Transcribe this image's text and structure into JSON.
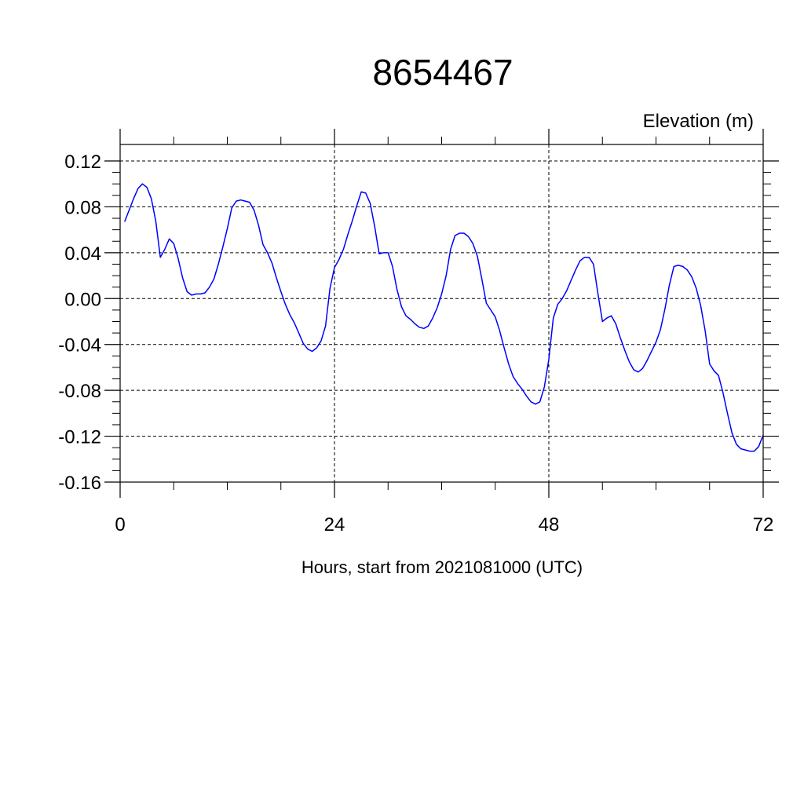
{
  "chart_data": {
    "type": "line",
    "title": "8654467",
    "ylabel": "Elevation (m)",
    "xlabel": "Hours, start from 2021081000 (UTC)",
    "xlim": [
      0,
      72
    ],
    "ylim": [
      -0.16,
      0.12
    ],
    "xticks": [
      0,
      24,
      48,
      72
    ],
    "xtick_labels": [
      "0",
      "24",
      "48",
      "72"
    ],
    "yticks": [
      -0.16,
      -0.12,
      -0.08,
      -0.04,
      0.0,
      0.04,
      0.08,
      0.12
    ],
    "ytick_labels": [
      "-0.16",
      "-0.12",
      "-0.08",
      "-0.04",
      "0.00",
      "0.04",
      "0.08",
      "0.12"
    ],
    "grid": true,
    "line_color": "#0000ff",
    "series": [
      {
        "values": [
          [
            0.5,
            0.067
          ],
          [
            1.5,
            0.087
          ],
          [
            2.0,
            0.096
          ],
          [
            2.5,
            0.1
          ],
          [
            3.0,
            0.097
          ],
          [
            3.5,
            0.087
          ],
          [
            4.0,
            0.067
          ],
          [
            4.5,
            0.036
          ],
          [
            5.0,
            0.043
          ],
          [
            5.5,
            0.052
          ],
          [
            6.0,
            0.048
          ],
          [
            6.5,
            0.035
          ],
          [
            7.0,
            0.018
          ],
          [
            7.5,
            0.006
          ],
          [
            8.0,
            0.003
          ],
          [
            8.5,
            0.004
          ],
          [
            9.0,
            0.004
          ],
          [
            9.5,
            0.005
          ],
          [
            10.0,
            0.01
          ],
          [
            10.5,
            0.017
          ],
          [
            11.0,
            0.03
          ],
          [
            11.5,
            0.045
          ],
          [
            12.0,
            0.061
          ],
          [
            12.5,
            0.079
          ],
          [
            13.0,
            0.085
          ],
          [
            13.5,
            0.086
          ],
          [
            14.0,
            0.085
          ],
          [
            14.5,
            0.084
          ],
          [
            15.0,
            0.077
          ],
          [
            15.5,
            0.064
          ],
          [
            16.0,
            0.047
          ],
          [
            16.5,
            0.04
          ],
          [
            17.0,
            0.031
          ],
          [
            17.5,
            0.018
          ],
          [
            18.0,
            0.006
          ],
          [
            18.5,
            -0.005
          ],
          [
            19.0,
            -0.014
          ],
          [
            19.5,
            -0.021
          ],
          [
            20.0,
            -0.03
          ],
          [
            20.5,
            -0.039
          ],
          [
            21.0,
            -0.044
          ],
          [
            21.5,
            -0.046
          ],
          [
            22.0,
            -0.043
          ],
          [
            22.5,
            -0.037
          ],
          [
            23.0,
            -0.024
          ],
          [
            23.5,
            0.009
          ],
          [
            24.0,
            0.027
          ],
          [
            24.5,
            0.034
          ],
          [
            25.0,
            0.043
          ],
          [
            25.5,
            0.056
          ],
          [
            26.0,
            0.068
          ],
          [
            26.5,
            0.081
          ],
          [
            27.0,
            0.093
          ],
          [
            27.5,
            0.092
          ],
          [
            28.0,
            0.083
          ],
          [
            28.5,
            0.063
          ],
          [
            29.0,
            0.039
          ],
          [
            29.5,
            0.04
          ],
          [
            30.0,
            0.04
          ],
          [
            30.5,
            0.028
          ],
          [
            31.0,
            0.008
          ],
          [
            31.5,
            -0.007
          ],
          [
            32.0,
            -0.015
          ],
          [
            32.5,
            -0.018
          ],
          [
            33.0,
            -0.022
          ],
          [
            33.5,
            -0.025
          ],
          [
            34.0,
            -0.026
          ],
          [
            34.5,
            -0.024
          ],
          [
            35.0,
            -0.017
          ],
          [
            35.5,
            -0.008
          ],
          [
            36.0,
            0.004
          ],
          [
            36.5,
            0.02
          ],
          [
            37.0,
            0.043
          ],
          [
            37.5,
            0.055
          ],
          [
            38.0,
            0.057
          ],
          [
            38.5,
            0.057
          ],
          [
            39.0,
            0.054
          ],
          [
            39.5,
            0.048
          ],
          [
            40.0,
            0.037
          ],
          [
            40.5,
            0.017
          ],
          [
            41.0,
            -0.004
          ],
          [
            41.5,
            -0.01
          ],
          [
            42.0,
            -0.016
          ],
          [
            42.5,
            -0.028
          ],
          [
            43.0,
            -0.043
          ],
          [
            43.5,
            -0.057
          ],
          [
            44.0,
            -0.068
          ],
          [
            44.5,
            -0.074
          ],
          [
            45.0,
            -0.079
          ],
          [
            45.5,
            -0.085
          ],
          [
            46.0,
            -0.09
          ],
          [
            46.5,
            -0.092
          ],
          [
            47.0,
            -0.09
          ],
          [
            47.5,
            -0.077
          ],
          [
            48.0,
            -0.053
          ],
          [
            48.5,
            -0.017
          ],
          [
            49.0,
            -0.005
          ],
          [
            49.5,
            0.0
          ],
          [
            50.0,
            0.007
          ],
          [
            50.5,
            0.016
          ],
          [
            51.0,
            0.025
          ],
          [
            51.5,
            0.033
          ],
          [
            52.0,
            0.036
          ],
          [
            52.5,
            0.036
          ],
          [
            53.0,
            0.03
          ],
          [
            53.5,
            0.004
          ],
          [
            54.0,
            -0.02
          ],
          [
            54.5,
            -0.017
          ],
          [
            55.0,
            -0.015
          ],
          [
            55.5,
            -0.022
          ],
          [
            56.0,
            -0.034
          ],
          [
            56.5,
            -0.045
          ],
          [
            57.0,
            -0.055
          ],
          [
            57.5,
            -0.062
          ],
          [
            58.0,
            -0.064
          ],
          [
            58.5,
            -0.061
          ],
          [
            59.0,
            -0.054
          ],
          [
            59.5,
            -0.046
          ],
          [
            60.0,
            -0.038
          ],
          [
            60.5,
            -0.027
          ],
          [
            61.0,
            -0.009
          ],
          [
            61.5,
            0.012
          ],
          [
            62.0,
            0.028
          ],
          [
            62.5,
            0.029
          ],
          [
            63.0,
            0.028
          ],
          [
            63.5,
            0.025
          ],
          [
            64.0,
            0.019
          ],
          [
            64.5,
            0.009
          ],
          [
            65.0,
            -0.006
          ],
          [
            65.5,
            -0.028
          ],
          [
            66.0,
            -0.057
          ],
          [
            66.5,
            -0.063
          ],
          [
            67.0,
            -0.067
          ],
          [
            67.5,
            -0.082
          ],
          [
            68.0,
            -0.1
          ],
          [
            68.5,
            -0.117
          ],
          [
            69.0,
            -0.127
          ],
          [
            69.5,
            -0.131
          ],
          [
            70.0,
            -0.132
          ],
          [
            70.5,
            -0.133
          ],
          [
            71.0,
            -0.133
          ],
          [
            71.5,
            -0.129
          ],
          [
            72.0,
            -0.119
          ]
        ]
      }
    ]
  }
}
